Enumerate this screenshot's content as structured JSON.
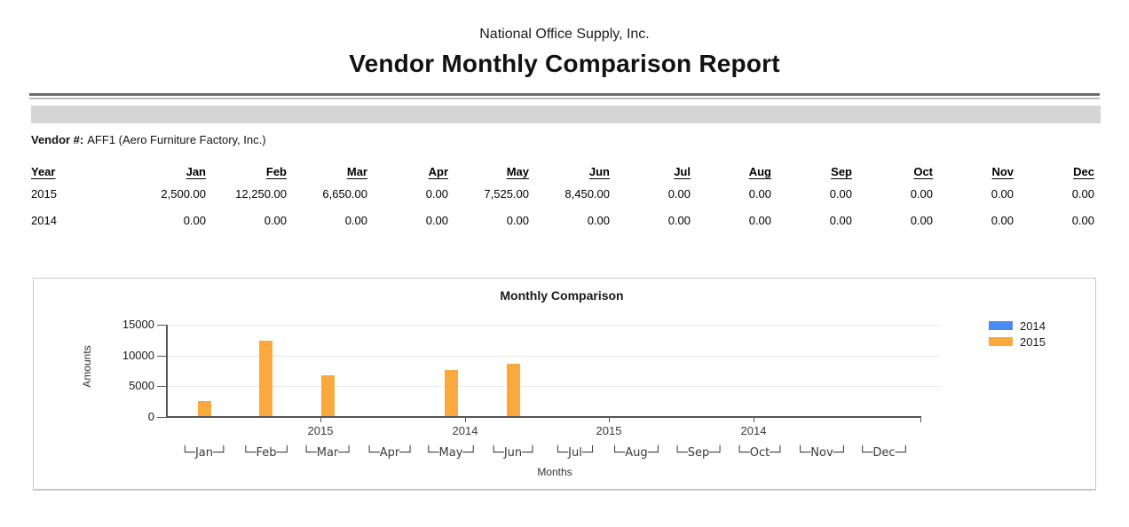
{
  "page": {
    "company": "National Office Supply, Inc.",
    "title": "Vendor Monthly Comparison Report"
  },
  "vendor": {
    "label": "Vendor #:",
    "value": "AFF1 (Aero Furniture Factory, Inc.)"
  },
  "table": {
    "columns": [
      "Year",
      "Jan",
      "Feb",
      "Mar",
      "Apr",
      "May",
      "Jun",
      "Jul",
      "Aug",
      "Sep",
      "Oct",
      "Nov",
      "Dec"
    ],
    "rows": [
      {
        "year": "2015",
        "values": [
          "2,500.00",
          "12,250.00",
          "6,650.00",
          "0.00",
          "7,525.00",
          "8,450.00",
          "0.00",
          "0.00",
          "0.00",
          "0.00",
          "0.00",
          "0.00"
        ]
      },
      {
        "year": "2014",
        "values": [
          "0.00",
          "0.00",
          "0.00",
          "0.00",
          "0.00",
          "0.00",
          "0.00",
          "0.00",
          "0.00",
          "0.00",
          "0.00",
          "0.00"
        ]
      }
    ]
  },
  "chart_data": {
    "type": "bar",
    "title": "Monthly Comparison",
    "xlabel": "Months",
    "ylabel": "Amounts",
    "categories": [
      "Jan",
      "Feb",
      "Mar",
      "Apr",
      "May",
      "Jun",
      "Jul",
      "Aug",
      "Sep",
      "Oct",
      "Nov",
      "Dec"
    ],
    "series": [
      {
        "name": "2014",
        "color": "#4a8af4",
        "values": [
          0,
          0,
          0,
          0,
          0,
          0,
          0,
          0,
          0,
          0,
          0,
          0
        ]
      },
      {
        "name": "2015",
        "color": "#fba83c",
        "values": [
          2500,
          12250,
          6650,
          0,
          7525,
          8450,
          0,
          0,
          0,
          0,
          0,
          0
        ]
      }
    ],
    "ylim": [
      0,
      15000
    ],
    "yticks": [
      0,
      5000,
      10000,
      15000
    ],
    "grid": true,
    "legend_position": "right",
    "axis_year_labels": [
      "2015",
      "2014",
      "2015",
      "2014"
    ]
  }
}
